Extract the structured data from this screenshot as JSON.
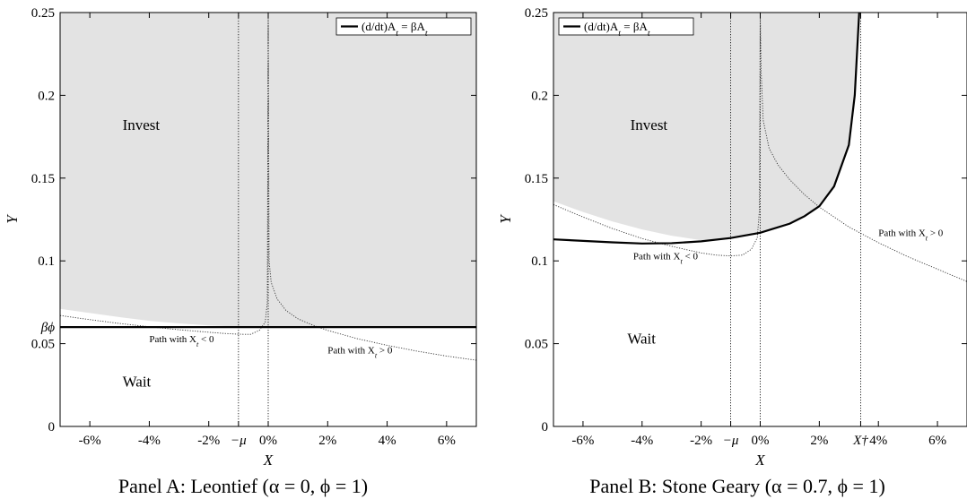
{
  "chart_data": [
    {
      "type": "line",
      "caption": "Panel A: Leontief (α = 0, ϕ = 1)",
      "xlabel": "X",
      "ylabel": "Y",
      "xlim": [
        -0.07,
        0.07
      ],
      "ylim": [
        0,
        0.25
      ],
      "x_ticks": [
        {
          "v": -0.06,
          "label": "-6%"
        },
        {
          "v": -0.04,
          "label": "-4%"
        },
        {
          "v": -0.02,
          "label": "-2%"
        },
        {
          "v": -0.01,
          "label": "−μ"
        },
        {
          "v": 0,
          "label": "0%"
        },
        {
          "v": 0.02,
          "label": "2%"
        },
        {
          "v": 0.04,
          "label": "4%"
        },
        {
          "v": 0.06,
          "label": "6%"
        }
      ],
      "y_ticks": [
        {
          "v": 0,
          "label": "0"
        },
        {
          "v": 0.05,
          "label": "0.05"
        },
        {
          "v": 0.06,
          "label": "βϕ"
        },
        {
          "v": 0.1,
          "label": "0.1"
        },
        {
          "v": 0.15,
          "label": "0.15"
        },
        {
          "v": 0.2,
          "label": "0.2"
        },
        {
          "v": 0.25,
          "label": "0.25"
        }
      ],
      "vlines": [
        -0.01,
        0
      ],
      "legend": {
        "label": "(d/dt)A_t = βA_t",
        "position": "top-right"
      },
      "region_labels": [
        {
          "text": "Invest",
          "x": -0.049,
          "y": 0.179
        },
        {
          "text": "Wait",
          "x": -0.049,
          "y": 0.024
        }
      ],
      "path_labels": [
        {
          "text": "Path with X_t < 0",
          "x": -0.04,
          "y": 0.051
        },
        {
          "text": "Path with X_t > 0",
          "x": 0.02,
          "y": 0.044
        }
      ],
      "invest_region": {
        "x": [
          -0.07,
          -0.06,
          -0.05,
          -0.04,
          -0.03,
          -0.02,
          -0.01,
          0,
          0.07
        ],
        "y": [
          0.071,
          0.0685,
          0.066,
          0.0638,
          0.0622,
          0.061,
          0.0603,
          0.06,
          0.06
        ]
      },
      "boundary": {
        "name": "(d/dt)A_t = βA_t",
        "x": [
          -0.07,
          0.07
        ],
        "y": [
          0.06,
          0.06
        ]
      },
      "path_neg": {
        "x": [
          -0.07,
          -0.06,
          -0.05,
          -0.04,
          -0.03,
          -0.02,
          -0.015,
          -0.01,
          -0.006,
          -0.003,
          -0.001,
          -0.0003,
          0
        ],
        "y": [
          0.067,
          0.0645,
          0.0622,
          0.0602,
          0.0584,
          0.0569,
          0.0562,
          0.0557,
          0.0556,
          0.058,
          0.063,
          0.075,
          0.25
        ]
      },
      "path_pos": {
        "x": [
          0,
          0.0003,
          0.001,
          0.003,
          0.006,
          0.01,
          0.015,
          0.02,
          0.03,
          0.04,
          0.05,
          0.06,
          0.07
        ],
        "y": [
          0.25,
          0.1,
          0.087,
          0.077,
          0.07,
          0.065,
          0.0612,
          0.058,
          0.053,
          0.049,
          0.0455,
          0.0425,
          0.04
        ]
      }
    },
    {
      "type": "line",
      "caption": "Panel B: Stone Geary (α = 0.7, ϕ = 1)",
      "xlabel": "X",
      "ylabel": "Y",
      "xlim": [
        -0.07,
        0.07
      ],
      "ylim": [
        0,
        0.25
      ],
      "x_ticks": [
        {
          "v": -0.06,
          "label": "-6%"
        },
        {
          "v": -0.04,
          "label": "-4%"
        },
        {
          "v": -0.02,
          "label": "-2%"
        },
        {
          "v": -0.01,
          "label": "−μ"
        },
        {
          "v": 0,
          "label": "0%"
        },
        {
          "v": 0.02,
          "label": "2%"
        },
        {
          "v": 0.034,
          "label": "X†"
        },
        {
          "v": 0.04,
          "label": "4%"
        },
        {
          "v": 0.06,
          "label": "6%"
        }
      ],
      "y_ticks": [
        {
          "v": 0,
          "label": "0"
        },
        {
          "v": 0.05,
          "label": "0.05"
        },
        {
          "v": 0.1,
          "label": "0.1"
        },
        {
          "v": 0.15,
          "label": "0.15"
        },
        {
          "v": 0.2,
          "label": "0.2"
        },
        {
          "v": 0.25,
          "label": "0.25"
        }
      ],
      "vlines": [
        -0.01,
        0,
        0.034
      ],
      "legend": {
        "label": "(d/dt)A_t = βA_t",
        "position": "top-left"
      },
      "region_labels": [
        {
          "text": "Invest",
          "x": -0.044,
          "y": 0.179
        },
        {
          "text": "Wait",
          "x": -0.045,
          "y": 0.05
        }
      ],
      "path_labels": [
        {
          "text": "Path with X_t < 0",
          "x": -0.043,
          "y": 0.101
        },
        {
          "text": "Path with X_t > 0",
          "x": 0.04,
          "y": 0.115
        }
      ],
      "invest_region": {
        "x": [
          -0.07,
          -0.06,
          -0.05,
          -0.04,
          -0.03,
          -0.02,
          -0.01,
          0,
          0.01,
          0.02,
          0.025,
          0.03,
          0.032,
          0.0335
        ],
        "y": [
          0.136,
          0.1295,
          0.1238,
          0.119,
          0.1152,
          0.1125,
          0.1135,
          0.117,
          0.1225,
          0.133,
          0.145,
          0.17,
          0.2,
          0.25
        ]
      },
      "boundary": {
        "name": "(d/dt)A_t = βA_t",
        "x": [
          -0.07,
          -0.05,
          -0.04,
          -0.03,
          -0.02,
          -0.01,
          0,
          0.01,
          0.015,
          0.02,
          0.025,
          0.03,
          0.032,
          0.0335
        ],
        "y": [
          0.113,
          0.1112,
          0.1105,
          0.1107,
          0.1118,
          0.1138,
          0.117,
          0.1225,
          0.127,
          0.133,
          0.145,
          0.17,
          0.2,
          0.25
        ]
      },
      "path_neg": {
        "x": [
          -0.07,
          -0.06,
          -0.05,
          -0.04,
          -0.03,
          -0.02,
          -0.015,
          -0.01,
          -0.006,
          -0.003,
          -0.001,
          -0.0003,
          0
        ],
        "y": [
          0.134,
          0.1265,
          0.1195,
          0.1135,
          0.1088,
          0.1048,
          0.1035,
          0.103,
          0.1035,
          0.107,
          0.114,
          0.13,
          0.25
        ]
      },
      "path_pos": {
        "x": [
          0,
          0.0003,
          0.001,
          0.003,
          0.006,
          0.01,
          0.015,
          0.02,
          0.03,
          0.04,
          0.05,
          0.06,
          0.07
        ],
        "y": [
          0.25,
          0.215,
          0.185,
          0.168,
          0.158,
          0.149,
          0.14,
          0.1325,
          0.1205,
          0.111,
          0.1025,
          0.095,
          0.0875
        ]
      }
    }
  ]
}
